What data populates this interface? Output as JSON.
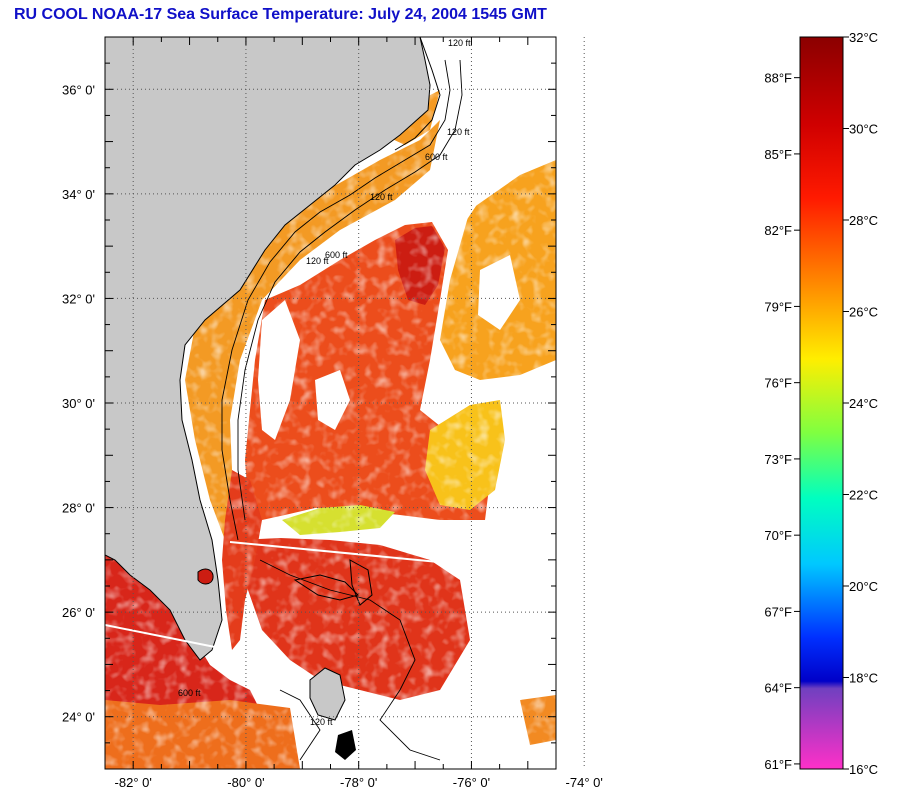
{
  "title": "RU COOL  NOAA-17  Sea Surface Temperature:  July 24, 2004 1545 GMT",
  "map": {
    "lat_labels": [
      "36° 0'",
      "34° 0'",
      "32° 0'",
      "30° 0'",
      "28° 0'",
      "26° 0'",
      "24° 0'"
    ],
    "lat_values": [
      36,
      34,
      32,
      30,
      28,
      26,
      24
    ],
    "lon_labels": [
      "-82° 0'",
      "-80° 0'",
      "-78° 0'",
      "-76° 0'",
      "-74° 0'"
    ],
    "lon_values": [
      -82,
      -80,
      -78,
      -76,
      -74
    ],
    "lat_range": [
      23,
      37
    ],
    "lon_range": [
      -82.5,
      -74.5
    ],
    "isobath_labels": [
      "120 ft",
      "120 ft",
      "600 ft",
      "120 ft",
      "600 ft",
      "120 ft",
      "600 ft",
      "120 ft"
    ],
    "colors": {
      "land": "#c8c8c8",
      "cloud": "#ffffff",
      "warm": "#e63a1e",
      "hot": "#c81414"
    }
  },
  "colorbar": {
    "celsius_labels": [
      "32°C",
      "30°C",
      "28°C",
      "26°C",
      "24°C",
      "22°C",
      "20°C",
      "18°C",
      "16°C"
    ],
    "celsius_values": [
      32,
      30,
      28,
      26,
      24,
      22,
      20,
      18,
      16
    ],
    "fahrenheit_labels": [
      "88°F",
      "85°F",
      "82°F",
      "79°F",
      "76°F",
      "73°F",
      "70°F",
      "67°F",
      "64°F",
      "61°F"
    ],
    "fahrenheit_values": [
      88,
      85,
      82,
      79,
      76,
      73,
      70,
      67,
      64,
      61
    ],
    "range_c": [
      16,
      32
    ]
  }
}
